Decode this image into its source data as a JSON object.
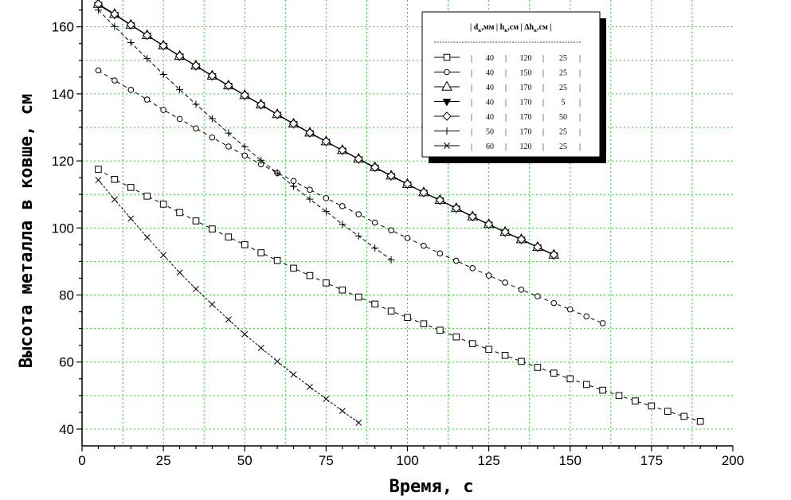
{
  "chart_data": {
    "type": "line",
    "xlabel": "Время, с",
    "ylabel": "Высота металла в ковше, см",
    "xlim": [
      0,
      200
    ],
    "ylim": [
      35,
      168
    ],
    "x_ticks": [
      0,
      25,
      50,
      75,
      100,
      125,
      150,
      175,
      200
    ],
    "y_ticks": [
      40,
      60,
      80,
      100,
      120,
      140,
      160
    ],
    "x_minor": 5,
    "y_minor": 5,
    "grid": true,
    "legend_position": "top-right",
    "legend": {
      "headers": [
        "d",
        "мм",
        "h",
        "см",
        "Δh",
        "см"
      ],
      "header_subscript": "к",
      "header_separator": "|"
    },
    "series": [
      {
        "marker": "square",
        "d": "40",
        "h": "120",
        "dh": "25",
        "x": [
          5,
          10,
          15,
          20,
          25,
          30,
          35,
          40,
          45,
          50,
          55,
          60,
          65,
          70,
          75,
          80,
          85,
          90,
          95,
          100,
          105,
          110,
          115,
          120,
          125,
          130,
          135,
          140,
          145,
          150,
          155,
          160,
          165,
          170,
          175,
          180,
          185,
          190
        ],
        "y": [
          117.5,
          114.5,
          112.1,
          109.5,
          107.1,
          104.6,
          102.1,
          99.7,
          97.3,
          95.0,
          92.6,
          90.3,
          88.0,
          85.8,
          83.6,
          81.5,
          79.4,
          77.3,
          75.2,
          73.3,
          71.4,
          69.5,
          67.5,
          65.5,
          63.8,
          62.0,
          60.2,
          58.4,
          56.7,
          55.0,
          53.3,
          51.6,
          50.0,
          48.4,
          46.9,
          45.3,
          43.8,
          42.3
        ]
      },
      {
        "marker": "circle",
        "d": "40",
        "h": "150",
        "dh": "25",
        "x": [
          5,
          10,
          15,
          20,
          25,
          30,
          35,
          40,
          45,
          50,
          55,
          60,
          65,
          70,
          75,
          80,
          85,
          90,
          95,
          100,
          105,
          110,
          115,
          120,
          125,
          130,
          135,
          140,
          145,
          150,
          155,
          160
        ],
        "y": [
          147.0,
          144.0,
          141.2,
          138.3,
          135.2,
          132.5,
          129.7,
          127.0,
          124.3,
          121.6,
          119.0,
          116.4,
          114.0,
          111.4,
          108.9,
          106.5,
          104.1,
          101.6,
          99.3,
          97.0,
          94.7,
          92.4,
          90.2,
          88.0,
          85.8,
          83.7,
          81.6,
          79.6,
          77.6,
          75.7,
          73.6,
          71.6
        ]
      },
      {
        "marker": "triangle-up",
        "d": "40",
        "h": "170",
        "dh": "25",
        "x": [
          5,
          10,
          15,
          20,
          25,
          30,
          35,
          40,
          45,
          50,
          55,
          60,
          65,
          70,
          75,
          80,
          85,
          90,
          95,
          100,
          105,
          110,
          115,
          120,
          125,
          130,
          135,
          140,
          145
        ],
        "y": [
          166.8,
          163.8,
          160.6,
          157.5,
          154.4,
          151.3,
          148.4,
          145.4,
          142.5,
          139.6,
          136.8,
          133.9,
          131.1,
          128.4,
          125.8,
          123.2,
          120.6,
          118.1,
          115.6,
          113.1,
          110.6,
          108.3,
          105.9,
          103.4,
          101.1,
          98.8,
          96.6,
          94.3,
          92.0
        ]
      },
      {
        "marker": "triangle-down-filled",
        "d": "40",
        "h": "170",
        "dh": "5",
        "x": [
          5,
          10,
          15,
          20,
          25,
          30,
          35,
          40,
          45,
          50,
          55,
          60,
          65,
          70,
          75,
          80,
          85,
          90,
          95,
          100,
          105,
          110,
          115,
          120,
          125,
          130,
          135,
          140,
          145
        ],
        "y": [
          166.6,
          163.6,
          160.5,
          157.4,
          154.3,
          151.2,
          148.3,
          145.3,
          142.4,
          139.5,
          136.7,
          133.8,
          131.0,
          128.3,
          125.7,
          123.1,
          120.5,
          118.0,
          115.5,
          113.0,
          110.5,
          108.2,
          105.8,
          103.3,
          101.0,
          98.7,
          96.5,
          94.2,
          91.9
        ]
      },
      {
        "marker": "diamond",
        "d": "40",
        "h": "170",
        "dh": "50",
        "x": [
          5,
          10,
          15,
          20,
          25,
          30,
          35,
          40,
          45,
          50,
          55,
          60,
          65,
          70,
          75,
          80,
          85,
          90,
          95,
          100,
          105,
          110,
          115,
          120,
          125,
          130,
          135,
          140,
          145
        ],
        "y": [
          166.8,
          163.8,
          160.6,
          157.5,
          154.4,
          151.3,
          148.4,
          145.4,
          142.5,
          139.6,
          136.8,
          133.9,
          131.1,
          128.4,
          125.8,
          123.2,
          120.6,
          118.1,
          115.6,
          113.1,
          110.6,
          108.3,
          105.9,
          103.4,
          101.1,
          98.8,
          96.6,
          94.3,
          92.0
        ]
      },
      {
        "marker": "plus",
        "d": "50",
        "h": "170",
        "dh": "25",
        "x": [
          5,
          10,
          15,
          20,
          25,
          30,
          35,
          40,
          45,
          50,
          55,
          60,
          65,
          70,
          75,
          80,
          85,
          90,
          95
        ],
        "y": [
          165.0,
          160.1,
          155.3,
          150.5,
          145.8,
          141.3,
          136.9,
          132.6,
          128.3,
          124.2,
          120.2,
          116.4,
          112.4,
          108.6,
          104.9,
          101.1,
          97.6,
          94.0,
          90.5
        ]
      },
      {
        "marker": "cross",
        "d": "60",
        "h": "120",
        "dh": "25",
        "x": [
          5,
          10,
          15,
          20,
          25,
          30,
          35,
          40,
          45,
          50,
          55,
          60,
          65,
          70,
          75,
          80,
          85
        ],
        "y": [
          114.3,
          108.5,
          102.8,
          97.2,
          91.9,
          86.7,
          81.8,
          77.2,
          72.7,
          68.3,
          64.2,
          60.2,
          56.3,
          52.6,
          49.0,
          45.4,
          41.9
        ]
      }
    ]
  }
}
